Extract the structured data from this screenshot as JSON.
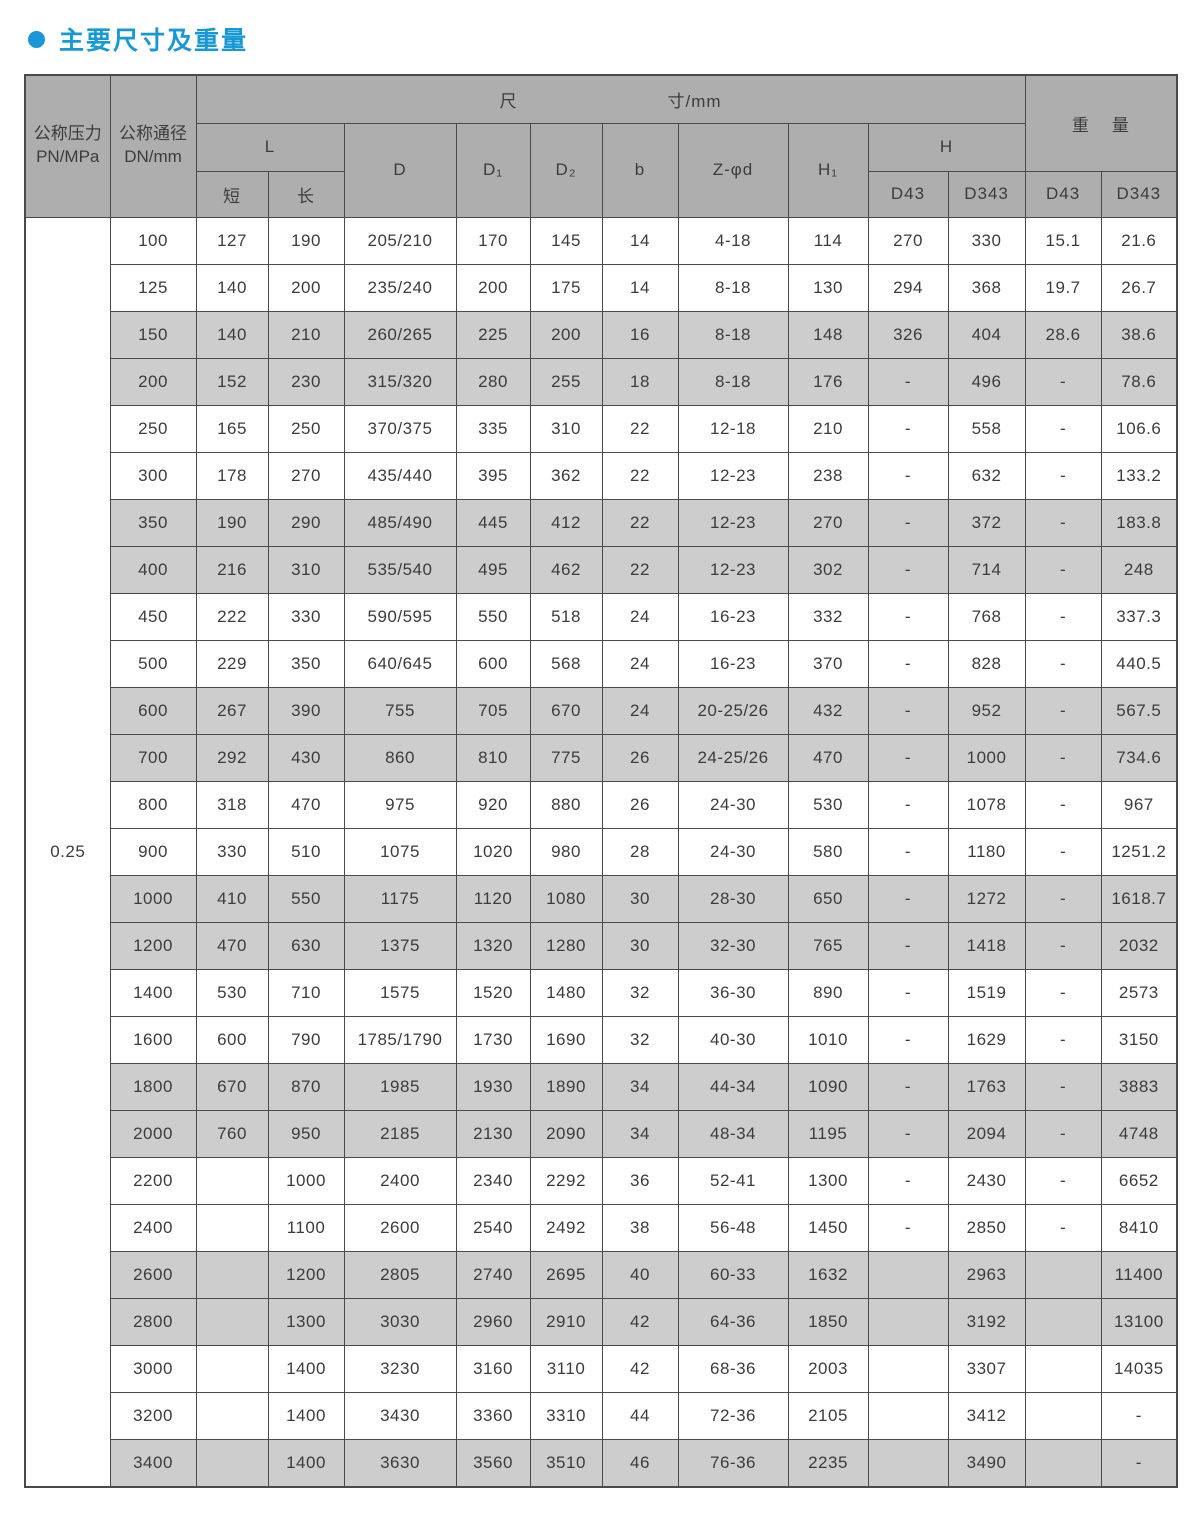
{
  "page": {
    "title": "主要尺寸及重量",
    "accent_color": "#1898d6",
    "header_bg_color": "#aeaeae",
    "stripe_color": "#cdcdcd",
    "border_color": "#4a4a4a"
  },
  "table": {
    "header": {
      "pressure_line1": "公称压力",
      "pressure_line2": "PN/MPa",
      "dn_line1": "公称通径",
      "dn_line2": "DN/mm",
      "dim_part1": "尺",
      "dim_part2": "寸/mm",
      "weight_part1": "重",
      "weight_part2": "量",
      "l_label": "L",
      "l_short": "短",
      "l_long": "长",
      "d_label": "D",
      "d1_label": "D₁",
      "d2_label": "D₂",
      "b_label": "b",
      "zd_label": "Z-φd",
      "h1_label": "H₁",
      "h_label": "H",
      "h_sub_d43": "D43",
      "h_sub_d343": "D343",
      "w_sub_d43": "D43",
      "w_sub_d343": "D343"
    },
    "pressure_value": "0.25",
    "cell_keys": [
      "dn",
      "l-short",
      "l-long",
      "d",
      "d1",
      "d2",
      "b",
      "z-phi-d",
      "h1",
      "h-d43",
      "h-d343",
      "weight-d43",
      "weight-d343"
    ],
    "rows": [
      {
        "shaded": false,
        "cells": [
          "100",
          "127",
          "190",
          "205/210",
          "170",
          "145",
          "14",
          "4-18",
          "114",
          "270",
          "330",
          "15.1",
          "21.6"
        ]
      },
      {
        "shaded": false,
        "cells": [
          "125",
          "140",
          "200",
          "235/240",
          "200",
          "175",
          "14",
          "8-18",
          "130",
          "294",
          "368",
          "19.7",
          "26.7"
        ]
      },
      {
        "shaded": true,
        "cells": [
          "150",
          "140",
          "210",
          "260/265",
          "225",
          "200",
          "16",
          "8-18",
          "148",
          "326",
          "404",
          "28.6",
          "38.6"
        ]
      },
      {
        "shaded": true,
        "cells": [
          "200",
          "152",
          "230",
          "315/320",
          "280",
          "255",
          "18",
          "8-18",
          "176",
          "-",
          "496",
          "-",
          "78.6"
        ]
      },
      {
        "shaded": false,
        "cells": [
          "250",
          "165",
          "250",
          "370/375",
          "335",
          "310",
          "22",
          "12-18",
          "210",
          "-",
          "558",
          "-",
          "106.6"
        ]
      },
      {
        "shaded": false,
        "cells": [
          "300",
          "178",
          "270",
          "435/440",
          "395",
          "362",
          "22",
          "12-23",
          "238",
          "-",
          "632",
          "-",
          "133.2"
        ]
      },
      {
        "shaded": true,
        "cells": [
          "350",
          "190",
          "290",
          "485/490",
          "445",
          "412",
          "22",
          "12-23",
          "270",
          "-",
          "372",
          "-",
          "183.8"
        ]
      },
      {
        "shaded": true,
        "cells": [
          "400",
          "216",
          "310",
          "535/540",
          "495",
          "462",
          "22",
          "12-23",
          "302",
          "-",
          "714",
          "-",
          "248"
        ]
      },
      {
        "shaded": false,
        "cells": [
          "450",
          "222",
          "330",
          "590/595",
          "550",
          "518",
          "24",
          "16-23",
          "332",
          "-",
          "768",
          "-",
          "337.3"
        ]
      },
      {
        "shaded": false,
        "cells": [
          "500",
          "229",
          "350",
          "640/645",
          "600",
          "568",
          "24",
          "16-23",
          "370",
          "-",
          "828",
          "-",
          "440.5"
        ]
      },
      {
        "shaded": true,
        "cells": [
          "600",
          "267",
          "390",
          "755",
          "705",
          "670",
          "24",
          "20-25/26",
          "432",
          "-",
          "952",
          "-",
          "567.5"
        ]
      },
      {
        "shaded": true,
        "cells": [
          "700",
          "292",
          "430",
          "860",
          "810",
          "775",
          "26",
          "24-25/26",
          "470",
          "-",
          "1000",
          "-",
          "734.6"
        ]
      },
      {
        "shaded": false,
        "cells": [
          "800",
          "318",
          "470",
          "975",
          "920",
          "880",
          "26",
          "24-30",
          "530",
          "-",
          "1078",
          "-",
          "967"
        ]
      },
      {
        "shaded": false,
        "cells": [
          "900",
          "330",
          "510",
          "1075",
          "1020",
          "980",
          "28",
          "24-30",
          "580",
          "-",
          "1180",
          "-",
          "1251.2"
        ]
      },
      {
        "shaded": true,
        "cells": [
          "1000",
          "410",
          "550",
          "1175",
          "1120",
          "1080",
          "30",
          "28-30",
          "650",
          "-",
          "1272",
          "-",
          "1618.7"
        ]
      },
      {
        "shaded": true,
        "cells": [
          "1200",
          "470",
          "630",
          "1375",
          "1320",
          "1280",
          "30",
          "32-30",
          "765",
          "-",
          "1418",
          "-",
          "2032"
        ]
      },
      {
        "shaded": false,
        "cells": [
          "1400",
          "530",
          "710",
          "1575",
          "1520",
          "1480",
          "32",
          "36-30",
          "890",
          "-",
          "1519",
          "-",
          "2573"
        ]
      },
      {
        "shaded": false,
        "cells": [
          "1600",
          "600",
          "790",
          "1785/1790",
          "1730",
          "1690",
          "32",
          "40-30",
          "1010",
          "-",
          "1629",
          "-",
          "3150"
        ]
      },
      {
        "shaded": true,
        "cells": [
          "1800",
          "670",
          "870",
          "1985",
          "1930",
          "1890",
          "34",
          "44-34",
          "1090",
          "-",
          "1763",
          "-",
          "3883"
        ]
      },
      {
        "shaded": true,
        "cells": [
          "2000",
          "760",
          "950",
          "2185",
          "2130",
          "2090",
          "34",
          "48-34",
          "1195",
          "-",
          "2094",
          "-",
          "4748"
        ]
      },
      {
        "shaded": false,
        "cells": [
          "2200",
          "",
          "1000",
          "2400",
          "2340",
          "2292",
          "36",
          "52-41",
          "1300",
          "-",
          "2430",
          "-",
          "6652"
        ]
      },
      {
        "shaded": false,
        "cells": [
          "2400",
          "",
          "1100",
          "2600",
          "2540",
          "2492",
          "38",
          "56-48",
          "1450",
          "-",
          "2850",
          "-",
          "8410"
        ]
      },
      {
        "shaded": true,
        "cells": [
          "2600",
          "",
          "1200",
          "2805",
          "2740",
          "2695",
          "40",
          "60-33",
          "1632",
          "",
          "2963",
          "",
          "11400"
        ]
      },
      {
        "shaded": true,
        "cells": [
          "2800",
          "",
          "1300",
          "3030",
          "2960",
          "2910",
          "42",
          "64-36",
          "1850",
          "",
          "3192",
          "",
          "13100"
        ]
      },
      {
        "shaded": false,
        "cells": [
          "3000",
          "",
          "1400",
          "3230",
          "3160",
          "3110",
          "42",
          "68-36",
          "2003",
          "",
          "3307",
          "",
          "14035"
        ]
      },
      {
        "shaded": false,
        "cells": [
          "3200",
          "",
          "1400",
          "3430",
          "3360",
          "3310",
          "44",
          "72-36",
          "2105",
          "",
          "3412",
          "",
          "-"
        ]
      },
      {
        "shaded": true,
        "cells": [
          "3400",
          "",
          "1400",
          "3630",
          "3560",
          "3510",
          "46",
          "76-36",
          "2235",
          "",
          "3490",
          "",
          "-"
        ]
      }
    ]
  }
}
